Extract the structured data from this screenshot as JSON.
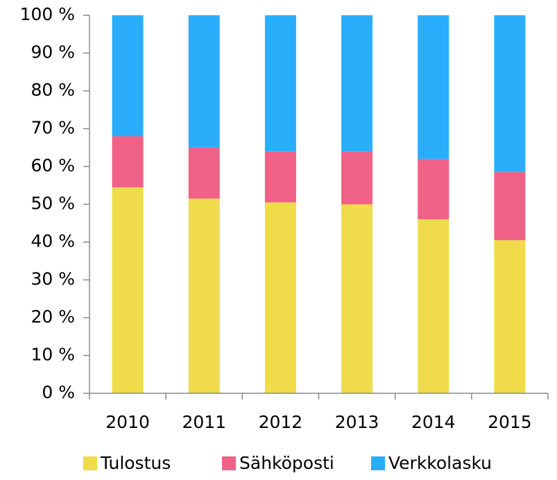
{
  "chart_data": {
    "type": "stacked_bar",
    "categories": [
      "2010",
      "2011",
      "2012",
      "2013",
      "2014",
      "2015"
    ],
    "series": [
      {
        "name": "Tulostus",
        "color": "#f0dc4b",
        "values": [
          54.5,
          51.5,
          50.5,
          50,
          46,
          40.5
        ]
      },
      {
        "name": "Sähköposti",
        "color": "#ef6186",
        "values": [
          13.5,
          13.5,
          13.5,
          14,
          16,
          18
        ]
      },
      {
        "name": "Verkkolasku",
        "color": "#2aaefc",
        "values": [
          32,
          35,
          36,
          36,
          38,
          41.5
        ]
      }
    ],
    "ylim": [
      0,
      100
    ],
    "yticks": [
      {
        "value": 0,
        "label": "0 %"
      },
      {
        "value": 10,
        "label": "10 %"
      },
      {
        "value": 20,
        "label": "20 %"
      },
      {
        "value": 30,
        "label": "30 %"
      },
      {
        "value": 40,
        "label": "40 %"
      },
      {
        "value": 50,
        "label": "50 %"
      },
      {
        "value": 60,
        "label": "60 %"
      },
      {
        "value": 70,
        "label": "70 %"
      },
      {
        "value": 80,
        "label": "80 %"
      },
      {
        "value": 90,
        "label": "90 %"
      },
      {
        "value": 100,
        "label": "100 %"
      }
    ],
    "legend": "bottom"
  }
}
